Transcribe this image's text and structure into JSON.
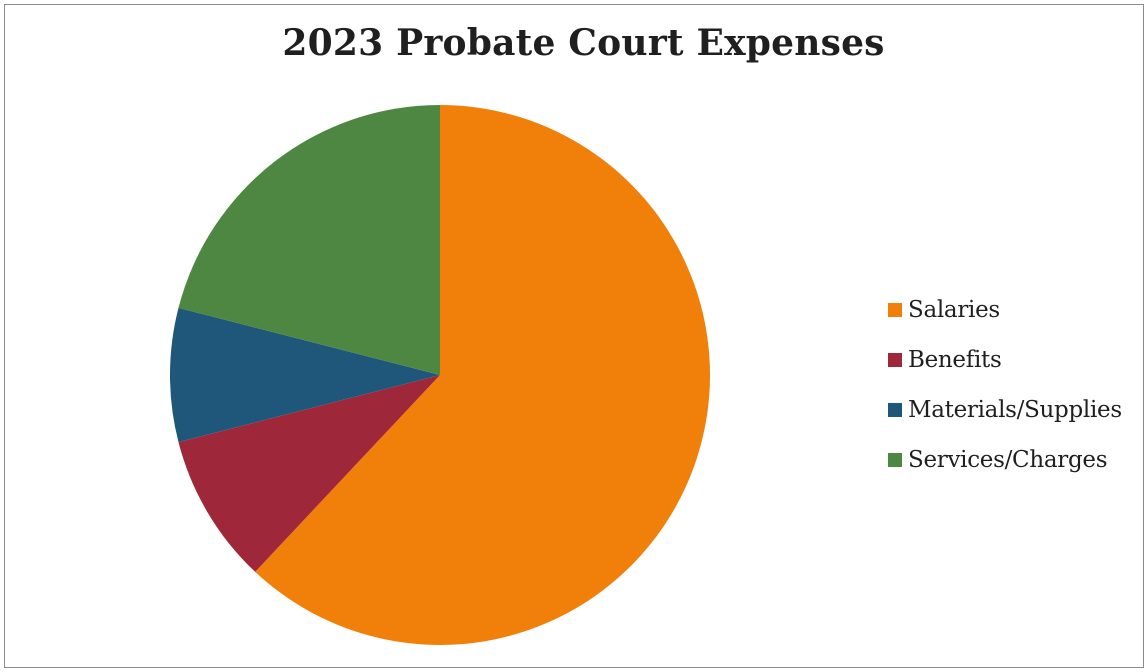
{
  "chart_data": {
    "type": "pie",
    "title": "2023 Probate Court Expenses",
    "categories": [
      "Salaries",
      "Benefits",
      "Materials/Supplies",
      "Services/Charges"
    ],
    "values": [
      62,
      9,
      8,
      21
    ],
    "colors": [
      "#f0800a",
      "#9e2739",
      "#1f577a",
      "#4e8742"
    ],
    "start_angle_deg": 0,
    "direction": "clockwise",
    "legend_position": "right"
  }
}
